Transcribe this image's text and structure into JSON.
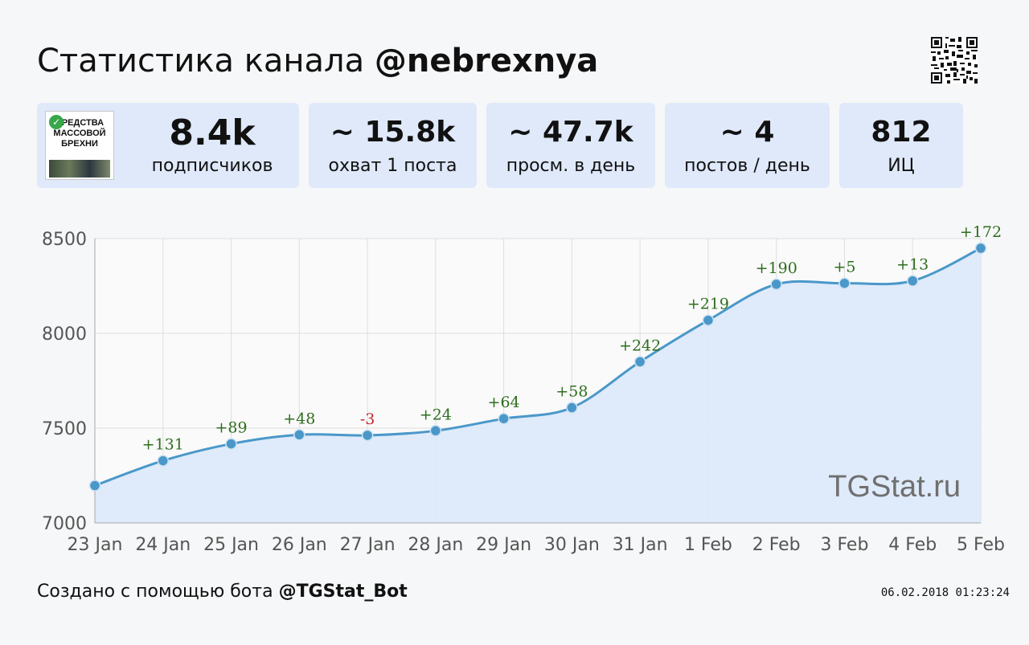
{
  "header": {
    "title_prefix": "Статистика канала",
    "channel": "@nebrexnya"
  },
  "avatar": {
    "text": "СРЕДСТВА МАССОВОЙ БРЕХНИ"
  },
  "stats": [
    {
      "value": "8.4k",
      "label": "подписчиков"
    },
    {
      "value": "~ 15.8k",
      "label": "охват 1 поста"
    },
    {
      "value": "~ 47.7k",
      "label": "просм. в день"
    },
    {
      "value": "~ 4",
      "label": "постов / день"
    },
    {
      "value": "812",
      "label": "ИЦ"
    }
  ],
  "chart_data": {
    "type": "area",
    "categories": [
      "23 Jan",
      "24 Jan",
      "25 Jan",
      "26 Jan",
      "27 Jan",
      "28 Jan",
      "29 Jan",
      "30 Jan",
      "31 Jan",
      "1 Feb",
      "2 Feb",
      "3 Feb",
      "4 Feb",
      "5 Feb"
    ],
    "values": [
      7197,
      7328,
      7417,
      7465,
      7462,
      7486,
      7550,
      7608,
      7850,
      8069,
      8259,
      8264,
      8277,
      8449
    ],
    "deltas": [
      "",
      "+131",
      "+89",
      "+48",
      "-3",
      "+24",
      "+64",
      "+58",
      "+242",
      "+219",
      "+190",
      "+5",
      "+13",
      "+172"
    ],
    "yticks": [
      7000,
      7500,
      8000,
      8500
    ],
    "ylim": [
      7000,
      8500
    ],
    "grid": true,
    "watermark": "TGStat.ru",
    "colors": {
      "line": "#4a98c9",
      "fill": "#dde9fa",
      "positive": "#2f6e1f",
      "negative": "#c62828"
    }
  },
  "footer": {
    "text": "Создано с помощью бота",
    "bot": "@TGStat_Bot",
    "timestamp": "06.02.2018 01:23:24"
  }
}
